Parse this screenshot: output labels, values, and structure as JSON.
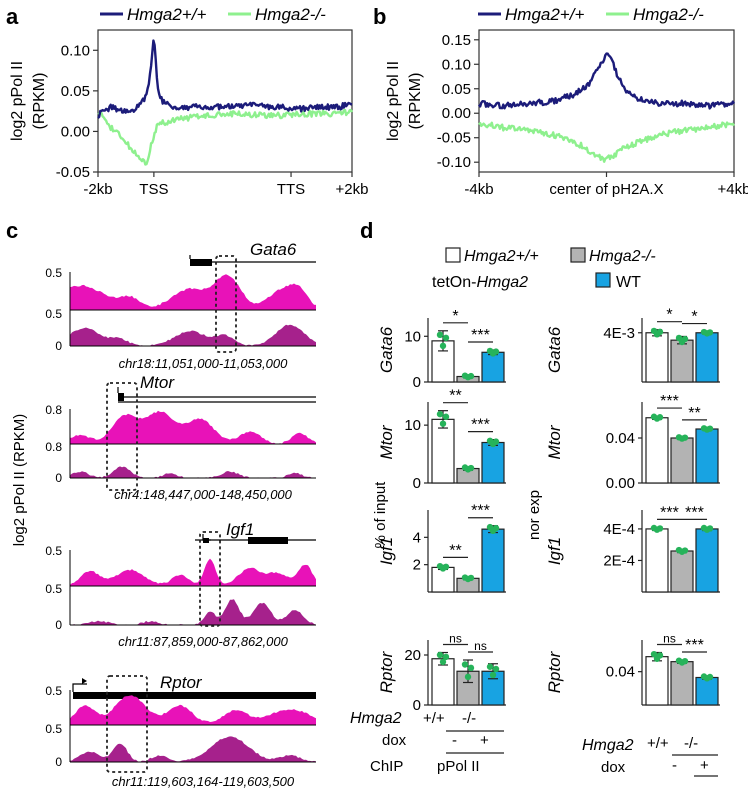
{
  "panel_labels": {
    "a": "a",
    "b": "b",
    "c": "c",
    "d": "d"
  },
  "colors": {
    "wt_line": "#1c1c7a",
    "ko_line": "#8ef08e",
    "track_top": "#e812b8",
    "track_bottom": "#a6218c",
    "bar_white": "#ffffff",
    "bar_grey": "#b3b3b3",
    "bar_blue": "#18a3e2",
    "dot": "#26b35a"
  },
  "legend_ab": {
    "wt": "Hmga2+/+",
    "ko": "Hmga2-/-"
  },
  "chart_data": [
    {
      "id": "a",
      "type": "line",
      "ylabel_1": "log2 pPol II",
      "ylabel_2": "(RPKM)",
      "ylim": [
        -0.05,
        0.125
      ],
      "yticks": [
        "0.10",
        "0.05",
        "0.00",
        "-0.05"
      ],
      "ytick_values": [
        0.1,
        0.05,
        0,
        -0.05
      ],
      "xticks": [
        "-2kb",
        "TSS",
        "TTS",
        "+2kb"
      ],
      "xtick_pos": [
        0,
        0.22,
        0.76,
        1.0
      ],
      "series": [
        {
          "name": "Hmga2+/+",
          "color": "#1c1c7a",
          "x": [
            0,
            0.05,
            0.1,
            0.14,
            0.17,
            0.19,
            0.2,
            0.21,
            0.215,
            0.22,
            0.225,
            0.23,
            0.24,
            0.26,
            0.3,
            0.35,
            0.4,
            0.5,
            0.6,
            0.7,
            0.8,
            0.9,
            0.95,
            1.0
          ],
          "values": [
            0.02,
            0.03,
            0.025,
            0.025,
            0.035,
            0.045,
            0.06,
            0.085,
            0.105,
            0.115,
            0.1,
            0.07,
            0.045,
            0.035,
            0.03,
            0.03,
            0.03,
            0.03,
            0.032,
            0.03,
            0.028,
            0.03,
            0.03,
            0.035
          ]
        },
        {
          "name": "Hmga2-/-",
          "color": "#8ef08e",
          "x": [
            0,
            0.05,
            0.1,
            0.14,
            0.17,
            0.19,
            0.2,
            0.21,
            0.22,
            0.23,
            0.25,
            0.28,
            0.32,
            0.38,
            0.45,
            0.55,
            0.65,
            0.75,
            0.85,
            0.95,
            1.0
          ],
          "values": [
            0.025,
            0.005,
            -0.01,
            -0.025,
            -0.035,
            -0.04,
            -0.03,
            -0.015,
            -0.005,
            0.005,
            0.01,
            0.012,
            0.015,
            0.018,
            0.02,
            0.022,
            0.02,
            0.02,
            0.022,
            0.022,
            0.025
          ]
        }
      ]
    },
    {
      "id": "b",
      "type": "line",
      "ylabel_1": "log2 pPol II",
      "ylabel_2": "(RPKM)",
      "ylim": [
        -0.12,
        0.17
      ],
      "yticks": [
        "0.15",
        "0.10",
        "0.05",
        "0.00",
        "-0.05",
        "-0.10"
      ],
      "ytick_values": [
        0.15,
        0.1,
        0.05,
        0,
        -0.05,
        -0.1
      ],
      "xticks": [
        "-4kb",
        "center of pH2A.X",
        "+4kb"
      ],
      "xtick_pos": [
        0,
        0.5,
        1.0
      ],
      "series": [
        {
          "name": "Hmga2+/+",
          "color": "#1c1c7a",
          "x": [
            0,
            0.1,
            0.2,
            0.3,
            0.38,
            0.43,
            0.46,
            0.48,
            0.5,
            0.52,
            0.54,
            0.57,
            0.62,
            0.7,
            0.8,
            0.9,
            1.0
          ],
          "values": [
            0.02,
            0.015,
            0.02,
            0.025,
            0.04,
            0.06,
            0.09,
            0.1,
            0.125,
            0.11,
            0.08,
            0.05,
            0.03,
            0.02,
            0.02,
            0.015,
            0.02
          ]
        },
        {
          "name": "Hmga2-/-",
          "color": "#8ef08e",
          "x": [
            0,
            0.1,
            0.2,
            0.3,
            0.38,
            0.43,
            0.47,
            0.5,
            0.53,
            0.57,
            0.62,
            0.7,
            0.8,
            0.9,
            1.0
          ],
          "values": [
            -0.02,
            -0.03,
            -0.035,
            -0.045,
            -0.06,
            -0.075,
            -0.09,
            -0.095,
            -0.085,
            -0.07,
            -0.06,
            -0.045,
            -0.035,
            -0.03,
            -0.02
          ]
        }
      ]
    }
  ],
  "panel_c": {
    "ylabel": "log2 pPol II (RPKM)",
    "tracks": [
      {
        "gene": "Gata6",
        "coord": "chr18:11,051,000-11,053,000",
        "scale_top": "0.5",
        "scale_bottom": "0.5",
        "zero": "0"
      },
      {
        "gene": "Mtor",
        "coord": "chr4:148,447,000-148,450,000",
        "scale_top": "0.8",
        "scale_bottom": "0.8",
        "zero": "0"
      },
      {
        "gene": "Igf1",
        "coord": "chr11:87,859,000-87,862,000",
        "scale_top": "0.5",
        "scale_bottom": "0.5",
        "zero": "0"
      },
      {
        "gene": "Rptor",
        "coord": "chr11:119,603,164-119,603,500",
        "scale_top": "0.5",
        "scale_bottom": "0.5",
        "zero": "0"
      }
    ]
  },
  "panel_d": {
    "legend": {
      "wt": "Hmga2+/+",
      "ko": "Hmga2-/-",
      "teton_prefix": "tetOn-",
      "teton_gene": "Hmga2",
      "teton_label": "WT"
    },
    "left_ylabel": "% of input",
    "right_ylabel": "nor exp",
    "left_bars": [
      {
        "gene": "Gata6",
        "ylim": [
          0,
          14
        ],
        "yticks": [
          "10",
          "0"
        ],
        "ytick_values": [
          10,
          0
        ],
        "values": [
          9,
          1.2,
          6.5
        ],
        "errors": [
          2.2,
          0.3,
          0.5
        ],
        "sig": [
          "*",
          "***"
        ]
      },
      {
        "gene": "Mtor",
        "ylim": [
          0,
          14
        ],
        "yticks": [
          "10",
          "0"
        ],
        "ytick_values": [
          10,
          0
        ],
        "values": [
          11,
          2.5,
          7
        ],
        "errors": [
          1.5,
          0.3,
          0.5
        ],
        "sig": [
          "**",
          "***"
        ]
      },
      {
        "gene": "Igf1",
        "ylim": [
          0,
          6
        ],
        "yticks": [
          "4",
          "2"
        ],
        "ytick_values": [
          4,
          2
        ],
        "values": [
          1.8,
          1.0,
          4.6
        ],
        "errors": [
          0.15,
          0.1,
          0.25
        ],
        "sig": [
          "**",
          "***"
        ]
      },
      {
        "gene": "Rptor",
        "ylim": [
          0,
          26
        ],
        "yticks": [
          "20",
          "0"
        ],
        "ytick_values": [
          20,
          0
        ],
        "values": [
          18.5,
          13.5,
          13.5
        ],
        "errors": [
          2.5,
          4.5,
          3.0
        ],
        "sig": [
          "ns",
          "ns"
        ]
      }
    ],
    "right_bars": [
      {
        "gene": "Gata6",
        "ylim": [
          0,
          0.0052
        ],
        "yticks": [
          "4E-3"
        ],
        "ytick_values": [
          0.004
        ],
        "values": [
          0.004,
          0.0034,
          0.004
        ],
        "errors": [
          0.00025,
          0.0003,
          0.0001
        ],
        "sig": [
          "*",
          "*"
        ]
      },
      {
        "gene": "Mtor",
        "ylim": [
          0,
          0.072
        ],
        "yticks": [
          "0.04",
          "0.00"
        ],
        "ytick_values": [
          0.04,
          0
        ],
        "values": [
          0.058,
          0.04,
          0.048
        ],
        "errors": [
          0.0015,
          0.001,
          0.001
        ],
        "sig": [
          "***",
          "**"
        ]
      },
      {
        "gene": "Igf1",
        "ylim": [
          0,
          0.00052
        ],
        "yticks": [
          "4E-4",
          "2E-4"
        ],
        "ytick_values": [
          0.0004,
          0.0002
        ],
        "values": [
          0.0004,
          0.00026,
          0.0004
        ],
        "errors": [
          1e-05,
          1e-05,
          1e-05
        ],
        "sig": [
          "***",
          "***"
        ]
      },
      {
        "gene": "Rptor",
        "ylim": [
          0,
          0.078
        ],
        "yticks": [
          "0.04"
        ],
        "ytick_values": [
          0.04
        ],
        "values": [
          0.058,
          0.052,
          0.033
        ],
        "errors": [
          0.005,
          0.002,
          0.002
        ],
        "sig": [
          "ns",
          "***"
        ]
      }
    ],
    "bottom_left": {
      "row1_label": "Hmga2",
      "row1_wt": "+/+",
      "row1_ko": "-/-",
      "row2_label": "dox",
      "row2_minus": "-",
      "row2_plus": "+",
      "row3_label": "ChIP",
      "row3_value": "pPol II"
    },
    "bottom_right": {
      "row1_label": "Hmga2",
      "row1_wt": "+/+",
      "row1_ko": "-/-",
      "row2_label": "dox",
      "row2_minus": "-",
      "row2_plus": "+"
    }
  }
}
